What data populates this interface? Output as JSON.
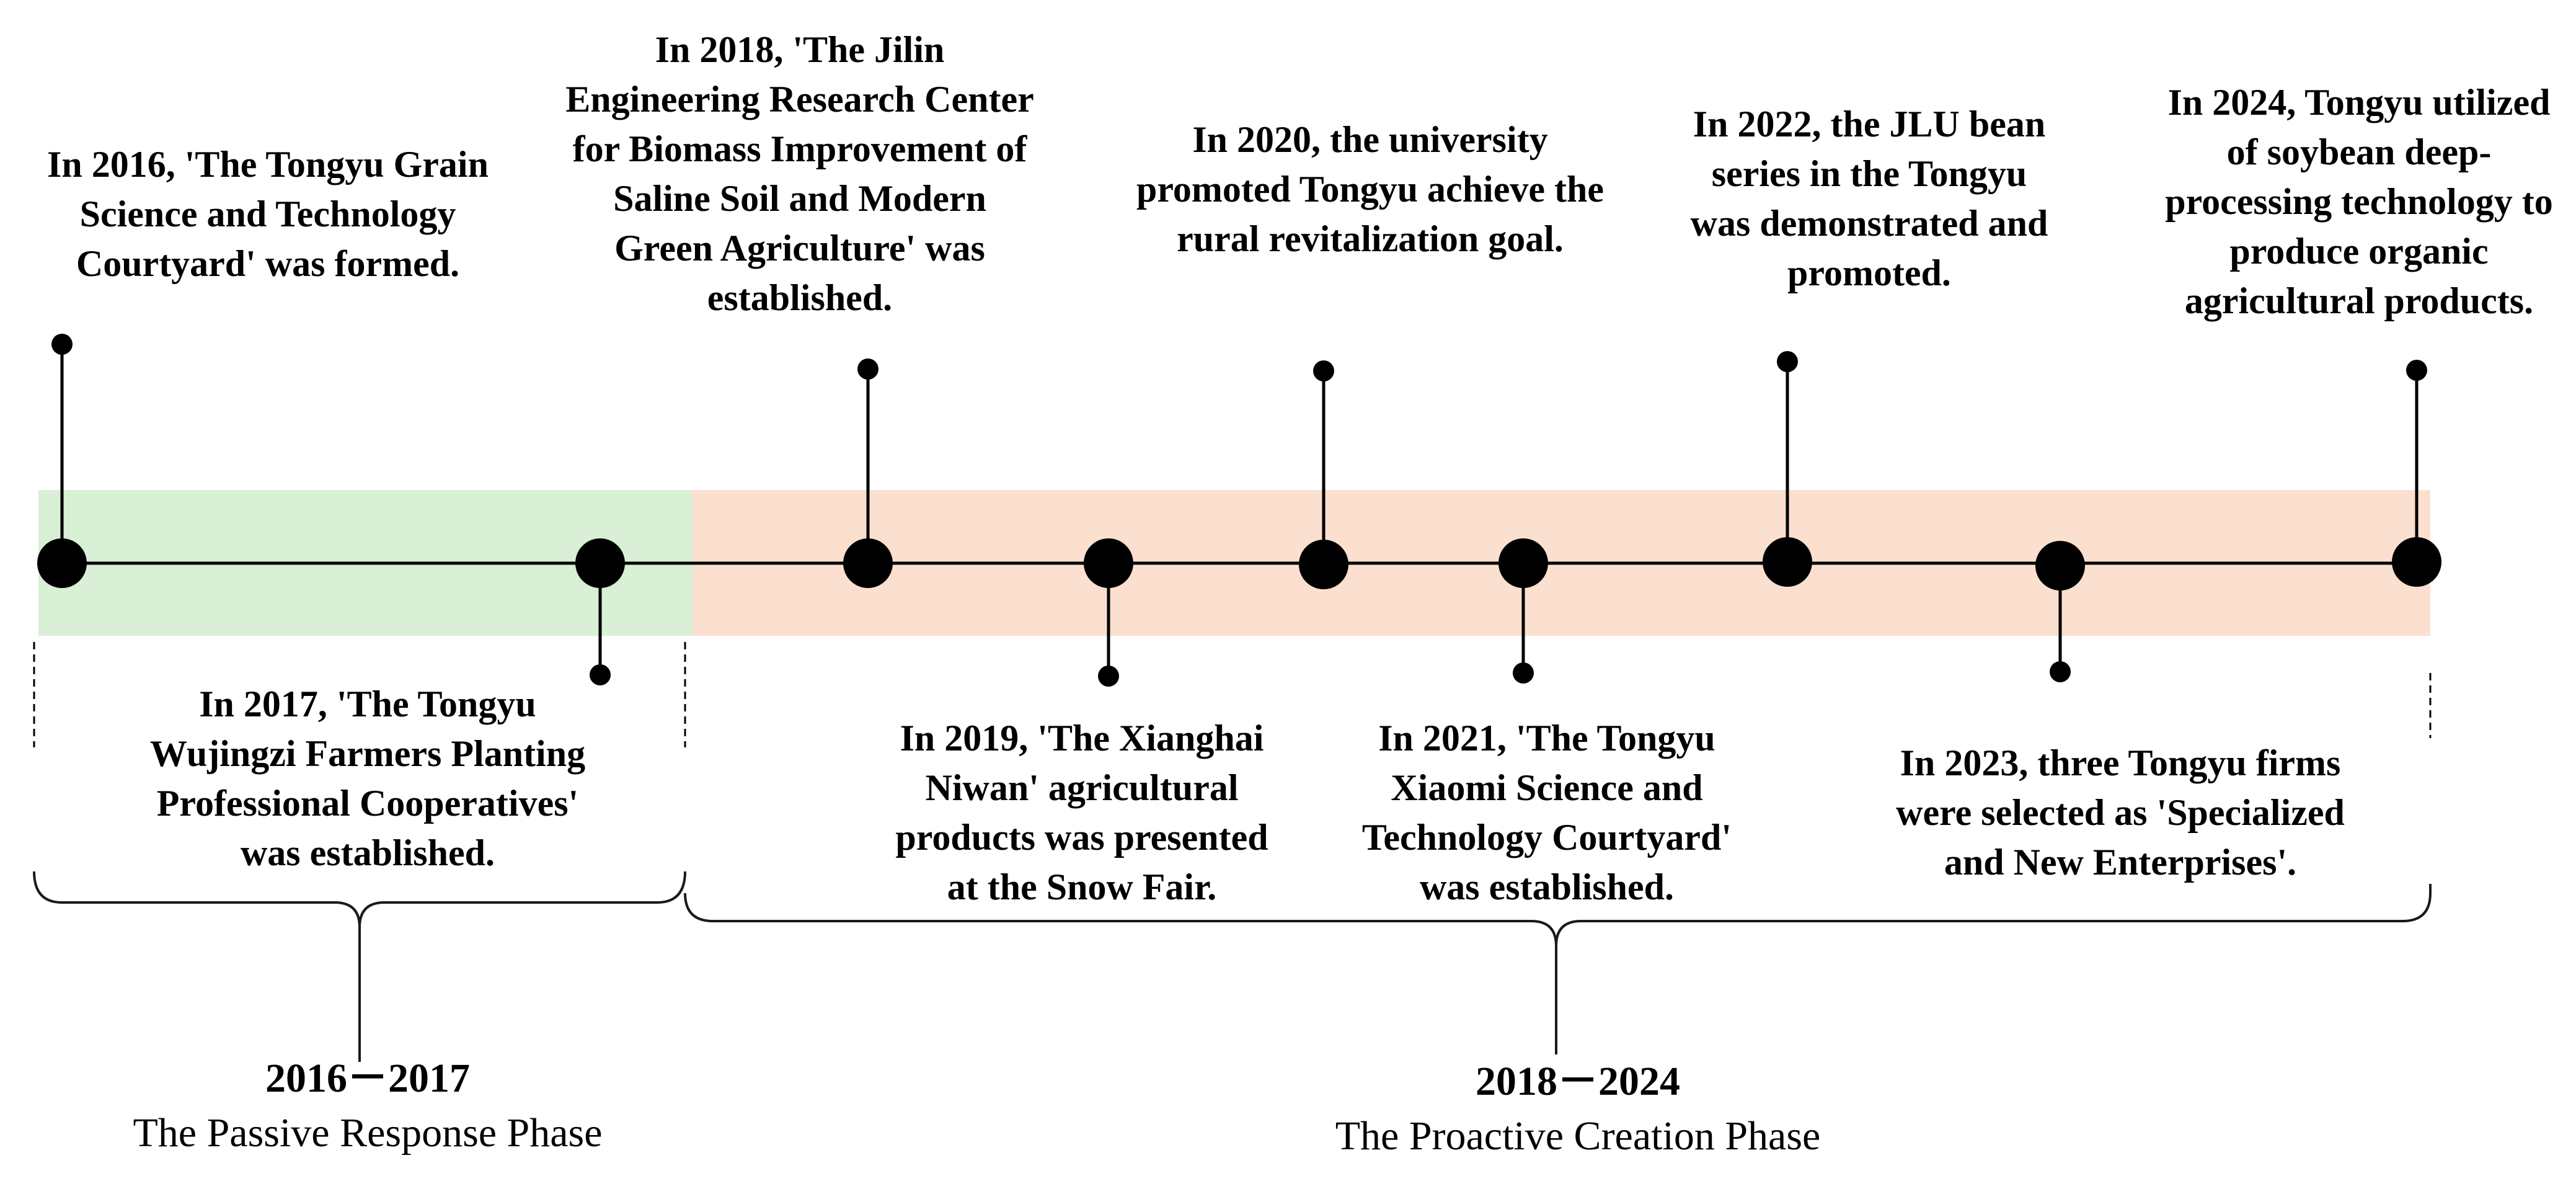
{
  "colors": {
    "passive_band": "#d9efd6",
    "proactive_band": "#fbe0cf",
    "line": "#000000",
    "bracket": "#1a1a1a"
  },
  "events": {
    "e2016": "In 2016, 'The Tongyu Grain\nScience and Technology\nCourtyard' was formed.",
    "e2017": "In 2017, 'The Tongyu\nWujingzi Farmers Planting\nProfessional Cooperatives'\nwas established.",
    "e2018": "In 2018, 'The Jilin\nEngineering Research Center\nfor Biomass Improvement of\nSaline Soil and Modern\nGreen Agriculture' was\nestablished.",
    "e2019": "In 2019, 'The Xianghai\nNiwan' agricultural\nproducts was presented\nat the Snow Fair.",
    "e2020": "In 2020, the university\npromoted Tongyu achieve the\nrural revitalization goal.",
    "e2021": "In 2021,  'The Tongyu\nXiaomi Science and\nTechnology Courtyard'\nwas established.",
    "e2022": "In 2022, the JLU bean\nseries in the Tongyu\nwas demonstrated and\npromoted.",
    "e2023": "In 2023, three Tongyu firms\nwere selected as 'Specialized\nand New Enterprises'.",
    "e2024": "In 2024, Tongyu utilized\nof soybean deep-\nprocessing technology to\nproduce organic\nagricultural products."
  },
  "phases": {
    "passive": {
      "years": "2016－2017",
      "name": "The Passive Response Phase"
    },
    "proactive": {
      "years": "2018－2024",
      "name": "The Proactive Creation Phase"
    }
  }
}
